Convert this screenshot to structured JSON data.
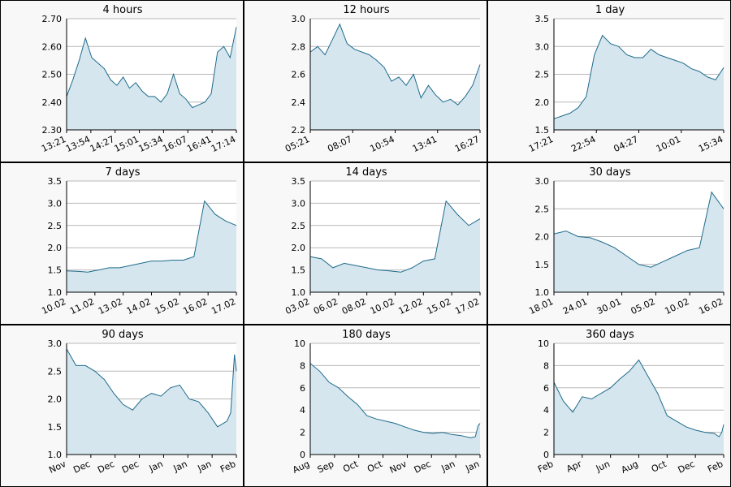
{
  "colors": {
    "line": "#1f6b8c",
    "fill": "#d5e6ee",
    "grid": "#b8b8b8",
    "panel": "#f8f8f8"
  },
  "chart_data": [
    {
      "type": "area",
      "title": "4 hours",
      "ylim": [
        2.3,
        2.7
      ],
      "yticks": [
        "2.30",
        "2.40",
        "2.50",
        "2.60",
        "2.70"
      ],
      "xticks": [
        "13:21",
        "13:54",
        "14:27",
        "15:01",
        "15:34",
        "16:07",
        "16:41",
        "17:14"
      ],
      "x": [
        "13:21",
        "13:30",
        "13:40",
        "13:47",
        "13:54",
        "14:00",
        "14:10",
        "14:20",
        "14:27",
        "14:40",
        "14:50",
        "15:01",
        "15:10",
        "15:20",
        "15:34",
        "15:45",
        "16:00",
        "16:07",
        "16:15",
        "16:25",
        "16:30",
        "16:41",
        "16:50",
        "17:00",
        "17:10",
        "17:14",
        "17:20",
        "17:25"
      ],
      "y": [
        2.42,
        2.48,
        2.55,
        2.63,
        2.56,
        2.54,
        2.52,
        2.48,
        2.46,
        2.49,
        2.45,
        2.47,
        2.44,
        2.42,
        2.42,
        2.4,
        2.43,
        2.5,
        2.43,
        2.41,
        2.38,
        2.39,
        2.4,
        2.43,
        2.58,
        2.6,
        2.56,
        2.67
      ]
    },
    {
      "type": "area",
      "title": "12 hours",
      "ylim": [
        2.2,
        3.0
      ],
      "yticks": [
        "2.2",
        "2.4",
        "2.6",
        "2.8",
        "3.0"
      ],
      "xticks": [
        "05:21",
        "08:07",
        "10:54",
        "13:41",
        "16:27"
      ],
      "x": [
        "05:21",
        "06:00",
        "06:40",
        "07:10",
        "07:40",
        "08:07",
        "08:40",
        "09:30",
        "10:20",
        "10:54",
        "11:30",
        "12:10",
        "12:40",
        "13:10",
        "13:41",
        "14:10",
        "14:40",
        "15:10",
        "15:40",
        "16:00",
        "16:27",
        "16:50",
        "17:10",
        "17:21"
      ],
      "y": [
        2.76,
        2.8,
        2.74,
        2.85,
        2.96,
        2.82,
        2.78,
        2.76,
        2.74,
        2.7,
        2.65,
        2.55,
        2.58,
        2.52,
        2.6,
        2.43,
        2.52,
        2.45,
        2.4,
        2.42,
        2.38,
        2.44,
        2.52,
        2.67
      ]
    },
    {
      "type": "area",
      "title": "1 day",
      "ylim": [
        1.5,
        3.5
      ],
      "yticks": [
        "1.5",
        "2.0",
        "2.5",
        "3.0",
        "3.5"
      ],
      "xticks": [
        "17:21",
        "22:54",
        "04:27",
        "10:01",
        "15:34"
      ],
      "x": [
        "17:21",
        "18:40",
        "20:00",
        "21:20",
        "22:20",
        "22:54",
        "23:30",
        "00:10",
        "01:00",
        "02:00",
        "03:00",
        "04:27",
        "05:40",
        "07:00",
        "08:20",
        "10:01",
        "11:20",
        "12:40",
        "14:00",
        "15:34",
        "16:30",
        "17:21"
      ],
      "y": [
        1.7,
        1.75,
        1.8,
        1.9,
        2.1,
        2.85,
        3.2,
        3.05,
        3.0,
        2.85,
        2.8,
        2.8,
        2.95,
        2.85,
        2.8,
        2.75,
        2.7,
        2.6,
        2.55,
        2.45,
        2.4,
        2.62
      ]
    },
    {
      "type": "area",
      "title": "7 days",
      "ylim": [
        1.0,
        3.5
      ],
      "yticks": [
        "1.0",
        "1.5",
        "2.0",
        "2.5",
        "3.0",
        "3.5"
      ],
      "xticks": [
        "10.02",
        "11.02",
        "13.02",
        "14.02",
        "15.02",
        "16.02",
        "17.02"
      ],
      "x": [
        "10.02",
        "10.5",
        "11.02",
        "12.0",
        "13.02",
        "13.5",
        "14.02",
        "14.5",
        "15.02",
        "15.5",
        "16.02",
        "16.3",
        "16.5",
        "16.6",
        "16.8",
        "17.02",
        "17.2"
      ],
      "y": [
        1.48,
        1.47,
        1.45,
        1.5,
        1.55,
        1.55,
        1.6,
        1.65,
        1.7,
        1.7,
        1.72,
        1.72,
        1.8,
        3.05,
        2.75,
        2.6,
        2.5
      ]
    },
    {
      "type": "area",
      "title": "14 days",
      "ylim": [
        1.0,
        3.5
      ],
      "yticks": [
        "1.0",
        "1.5",
        "2.0",
        "2.5",
        "3.0",
        "3.5"
      ],
      "xticks": [
        "03.02",
        "06.02",
        "08.02",
        "10.02",
        "12.02",
        "15.02",
        "17.02"
      ],
      "x": [
        "03.02",
        "04.5",
        "06.02",
        "07.0",
        "08.02",
        "09.0",
        "10.02",
        "11.0",
        "12.02",
        "13.5",
        "15.02",
        "16.0",
        "16.3",
        "16.6",
        "17.02",
        "17.3"
      ],
      "y": [
        1.8,
        1.75,
        1.55,
        1.65,
        1.6,
        1.55,
        1.5,
        1.48,
        1.45,
        1.55,
        1.7,
        1.75,
        3.05,
        2.75,
        2.5,
        2.65
      ]
    },
    {
      "type": "area",
      "title": "30 days",
      "ylim": [
        1.0,
        3.0
      ],
      "yticks": [
        "1.0",
        "1.5",
        "2.0",
        "2.5",
        "3.0"
      ],
      "xticks": [
        "18.01",
        "24.01",
        "30.01",
        "05.02",
        "10.02",
        "16.02"
      ],
      "x": [
        "18.01",
        "20.01",
        "24.01",
        "27.01",
        "30.01",
        "02.02",
        "05.02",
        "07.02",
        "10.02",
        "12.02",
        "14.02",
        "15.02",
        "16.02",
        "16.5",
        "17.02"
      ],
      "y": [
        2.05,
        2.1,
        2.0,
        1.98,
        1.9,
        1.8,
        1.65,
        1.5,
        1.45,
        1.55,
        1.65,
        1.75,
        1.8,
        2.8,
        2.5
      ]
    },
    {
      "type": "area",
      "title": "90 days",
      "ylim": [
        1.0,
        3.0
      ],
      "yticks": [
        "1.0",
        "1.5",
        "2.0",
        "2.5",
        "3.0"
      ],
      "xticks": [
        "Nov",
        "Dec",
        "Dec",
        "Dec",
        "Jan",
        "Jan",
        "Jan",
        "Feb"
      ],
      "x": [
        0,
        5,
        10,
        15,
        20,
        25,
        30,
        35,
        40,
        45,
        50,
        55,
        60,
        65,
        70,
        75,
        80,
        85,
        87,
        89,
        90
      ],
      "y": [
        2.9,
        2.6,
        2.6,
        2.5,
        2.35,
        2.1,
        1.9,
        1.8,
        2.0,
        2.1,
        2.05,
        2.2,
        2.25,
        2.0,
        1.95,
        1.75,
        1.5,
        1.6,
        1.75,
        2.8,
        2.5
      ]
    },
    {
      "type": "area",
      "title": "180 days",
      "ylim": [
        0,
        10
      ],
      "yticks": [
        "0",
        "2",
        "4",
        "6",
        "8",
        "10"
      ],
      "xticks": [
        "Aug",
        "Sep",
        "Oct",
        "Oct",
        "Nov",
        "Dec",
        "Jan",
        "Jan"
      ],
      "x": [
        0,
        10,
        20,
        30,
        40,
        50,
        60,
        70,
        80,
        90,
        100,
        110,
        120,
        130,
        140,
        150,
        160,
        170,
        175,
        178,
        180
      ],
      "y": [
        8.2,
        7.5,
        6.5,
        6.0,
        5.2,
        4.5,
        3.5,
        3.2,
        3.0,
        2.8,
        2.5,
        2.2,
        2.0,
        1.9,
        2.0,
        1.8,
        1.7,
        1.5,
        1.6,
        2.6,
        2.8
      ]
    },
    {
      "type": "area",
      "title": "360 days",
      "ylim": [
        0,
        10
      ],
      "yticks": [
        "0",
        "2",
        "4",
        "6",
        "8",
        "10"
      ],
      "xticks": [
        "Feb",
        "Apr",
        "Jun",
        "Aug",
        "Oct",
        "Dec",
        "Feb"
      ],
      "x": [
        0,
        20,
        40,
        60,
        80,
        100,
        120,
        140,
        160,
        180,
        200,
        220,
        240,
        260,
        280,
        300,
        320,
        340,
        350,
        356,
        360
      ],
      "y": [
        6.5,
        4.8,
        3.8,
        5.2,
        5.0,
        5.5,
        6.0,
        6.8,
        7.5,
        8.5,
        7.0,
        5.5,
        3.5,
        3.0,
        2.5,
        2.2,
        2.0,
        1.9,
        1.6,
        2.0,
        2.7
      ]
    }
  ]
}
